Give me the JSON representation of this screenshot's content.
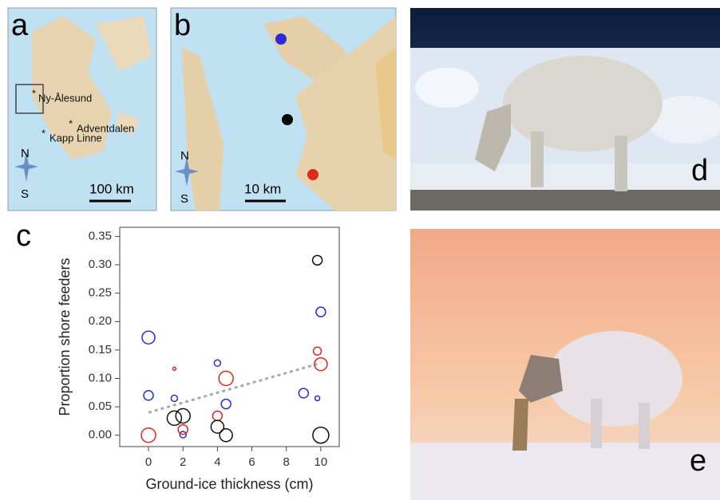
{
  "panels": {
    "a": {
      "label": "a",
      "places": [
        "Ny-Ålesund",
        "Adventdalen",
        "Kapp Linne"
      ],
      "north": "N",
      "south": "S",
      "scale": "100 km"
    },
    "b": {
      "label": "b",
      "north": "N",
      "south": "S",
      "scale": "10 km"
    },
    "c": {
      "label": "c"
    },
    "d": {
      "label": "d"
    },
    "e": {
      "label": "e"
    }
  },
  "chart_data": {
    "type": "scatter",
    "x_label": "Ground-ice thickness (cm)",
    "y_label": "Proportion shore feeders",
    "xlim": [
      -1.67,
      11.07
    ],
    "ylim": [
      -0.02,
      0.366
    ],
    "xticks": [
      0,
      2,
      4,
      6,
      8,
      10
    ],
    "yticks": [
      {
        "value": 0,
        "label": "0.00"
      },
      0.05,
      {
        "value": 0.1,
        "label": "0.10"
      },
      0.15,
      {
        "value": 0.2,
        "label": "0.20"
      },
      0.25,
      {
        "value": 0.3,
        "label": "0.30"
      },
      0.35
    ],
    "series": [
      {
        "color": "#2b2bd9",
        "x": [
          0,
          0,
          1.5,
          2,
          4,
          4.5,
          9,
          9.8,
          10
        ],
        "values": [
          0.172,
          0.07,
          0.065,
          0.001,
          0.127,
          0.055,
          0.074,
          0.065,
          0.217
        ],
        "sizes": [
          8,
          6,
          4,
          4,
          4,
          6,
          6,
          3,
          6
        ]
      },
      {
        "color": "#e0261f",
        "x": [
          0,
          1.5,
          2,
          4,
          4.5,
          9.8,
          10
        ],
        "values": [
          0.0,
          0.117,
          0.01,
          0.034,
          0.1,
          0.148,
          0.125
        ],
        "sizes": [
          9,
          2,
          6,
          6,
          9,
          5,
          8
        ]
      },
      {
        "color": "#111111",
        "x": [
          1.5,
          2,
          4,
          4.5,
          9.8,
          10
        ],
        "values": [
          0.03,
          0.034,
          0.015,
          0.0,
          0.308,
          0.0
        ],
        "sizes": [
          9,
          9,
          8,
          8,
          6,
          10
        ]
      }
    ],
    "trend": {
      "color": "#aaaaaa",
      "x": [
        0,
        10
      ],
      "values": [
        0.04,
        0.127
      ]
    }
  }
}
